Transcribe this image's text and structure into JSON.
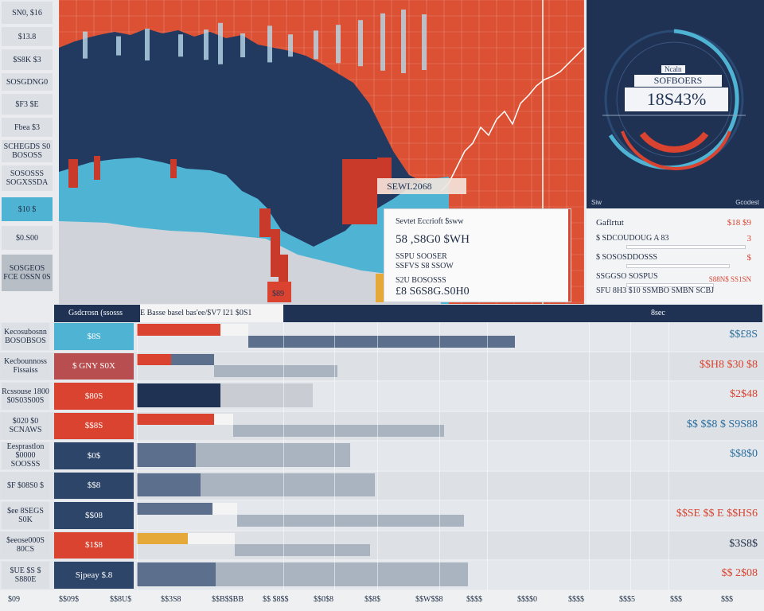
{
  "left_column": [
    {
      "text": "SN0, $16",
      "style": "light"
    },
    {
      "text": "$13.8",
      "style": "light"
    },
    {
      "text": "$S8K $3",
      "style": "light"
    },
    {
      "text": "SOSGDNG0",
      "style": "light"
    },
    {
      "text": "$F3 $E",
      "style": "light"
    },
    {
      "text": "Fbea  $3",
      "style": "light"
    },
    {
      "text": "SCHEGDS S0 BOSOSS",
      "style": "light"
    },
    {
      "text": "SOSOSSS SOGXSSDA",
      "style": "light"
    },
    {
      "text": "$10 $",
      "style": "blue"
    },
    {
      "text": "$0.S00",
      "style": "light"
    },
    {
      "text": "SOSGEOS FCE OSSN 0S",
      "style": "dark"
    }
  ],
  "main_chart": {
    "overlay_label": "SEWL2068",
    "bottom_value": "$89"
  },
  "gauge": {
    "small_label": "Ncaln",
    "title": "SOFBOERS",
    "value": "18S43%",
    "footer_left": "Siw",
    "footer_right": "Gcodest"
  },
  "info_card": {
    "header": "Sevtet Eccrioft  $sww",
    "line1": "58 ,S8G0 $WH",
    "line2": "SSPU SOOSER",
    "line3": "SSFVS S8 SSOW",
    "line4": "S2U BOSOSSS",
    "line5": "£8 S6S8G.S0H0"
  },
  "right_panel": {
    "title": "Gaflrtut",
    "top_value": "$18 $9",
    "rows": [
      {
        "label": "$ SDCOUDOUG A 83",
        "value": "3"
      },
      {
        "label": "$ SOSOSDDOSSS",
        "value": "$"
      },
      {
        "label": "SSGGSO SOSPUS",
        "value": ""
      }
    ],
    "footer_label": "SFU 8H3 $10 SSMBO SMBN SCBJ",
    "footer_value": "S88N$ SS1SN"
  },
  "table": {
    "headers": [
      "Gsdcrosn (ssosss",
      "E Basse basel  bas'ee/$V7 I21 $0S1",
      "",
      "",
      "",
      "",
      "",
      "",
      "8sec"
    ],
    "rows": [
      {
        "label": "Kecosubosnn BOSOBSOS",
        "category": "$8S",
        "color": "#4fb3d3",
        "value": "$$£8S",
        "value_color": "#2a6f9e",
        "bars": [
          {
            "w": 0.51,
            "c": "#d9432f"
          },
          {
            "w": 0.17,
            "c": "#f4f4f4"
          },
          {
            "w": 0.95,
            "c": "#5c6f8d",
            "y": 1
          }
        ]
      },
      {
        "label": "Kecbounnoss Fissaiss",
        "category": "$ GNY S0X",
        "color": "#b84e50",
        "value": "$$H8 $30 $8",
        "value_color": "#d9432f",
        "bars": [
          {
            "w": 0.21,
            "c": "#d9432f"
          },
          {
            "w": 0.26,
            "c": "#5c6f8d"
          },
          {
            "w": 0.44,
            "c": "#aab3c0"
          }
        ]
      },
      {
        "label": "Rcssouse 1800 $0S03S00S",
        "category": "$80S",
        "color": "#d9432f",
        "value": "$2$48",
        "value_color": "#d9432f",
        "bars": [
          {
            "w": 0.51,
            "c": "#1f3254"
          },
          {
            "w": 0.33,
            "c": "#c9cdd3"
          }
        ]
      },
      {
        "label": "$020 $0 SCNAWS",
        "category": "$$8S",
        "color": "#d9432f",
        "value": "$$ $$8 $ S9S88",
        "value_color": "#2a6f9e",
        "bars": [
          {
            "w": 0.47,
            "c": "#d9432f"
          },
          {
            "w": 0.12,
            "c": "#f4f4f4"
          },
          {
            "w": 0.75,
            "c": "#aab3c0"
          }
        ]
      },
      {
        "label": "Eesprastlon $0000 SOOSSS",
        "category": "$0$",
        "color": "#2d4569",
        "value": "$$8$0",
        "value_color": "#2a6f9e",
        "bars": [
          {
            "w": 0.36,
            "c": "#5c6f8d"
          },
          {
            "w": 0.55,
            "c": "#aab3c0"
          }
        ]
      },
      {
        "label": "$F $08S0 $",
        "category": "$$8",
        "color": "#2d4569",
        "value": "",
        "value_color": "#1f2c44",
        "bars": [
          {
            "w": 0.39,
            "c": "#5c6f8d"
          },
          {
            "w": 0.62,
            "c": "#aab3c0"
          }
        ]
      },
      {
        "label": "$ee 8SEGS S0K",
        "category": "$$08",
        "color": "#2d4569",
        "value": "$$SE $$ E $$HS6",
        "value_color": "#d9432f",
        "bars": [
          {
            "w": 0.46,
            "c": "#5c6f8d"
          },
          {
            "w": 0.15,
            "c": "#f4f4f4"
          },
          {
            "w": 0.81,
            "c": "#aab3c0"
          }
        ]
      },
      {
        "label": "$eeose000S 80CS",
        "category": "$1$8",
        "color": "#d9432f",
        "value": "$3S8$",
        "value_color": "#1f2c44",
        "bars": [
          {
            "w": 0.31,
            "c": "#e5a93a"
          },
          {
            "w": 0.29,
            "c": "#f4f4f4"
          },
          {
            "w": 0.48,
            "c": "#aab3c0"
          }
        ]
      },
      {
        "label": "$UE $S $ S880E",
        "category": "Sjpeay $.8",
        "color": "#2d4569",
        "value": "$$ 2$08",
        "value_color": "#d9432f",
        "bars": [
          {
            "w": 0.48,
            "c": "#5c6f8d"
          },
          {
            "w": 0.9,
            "c": "#aab3c0"
          }
        ]
      }
    ]
  },
  "bottom_axis": [
    "$09",
    "$$09$",
    "$$8U$",
    "$$3S8",
    "$$B$$BB",
    "$$ $8$$",
    "$$0$8",
    "$$8$",
    "$$W$$8",
    "$$$$",
    "$$$$0",
    "$$$$",
    "$$$5",
    "$$$",
    "$$$"
  ],
  "chart_data": {
    "type": "bar",
    "categories": [
      "$8S",
      "$ GNY S0X",
      "$80S",
      "$$8S",
      "$0$",
      "$$8",
      "$$08",
      "$1$8",
      "Sjpeay $.8"
    ],
    "series": [
      {
        "values": [
          0.51,
          0.21,
          0.51,
          0.47,
          0.36,
          0.39,
          0.46,
          0.31,
          0.48
        ]
      },
      {
        "values": [
          0.95,
          0.44,
          0.33,
          0.75,
          0.55,
          0.62,
          0.81,
          0.48,
          0.9
        ]
      }
    ],
    "colors": {
      "navy": "#1f3254",
      "red": "#d9432f",
      "blue": "#4fb3d3",
      "gray": "#aab3c0",
      "yellow": "#e5a93a"
    }
  }
}
